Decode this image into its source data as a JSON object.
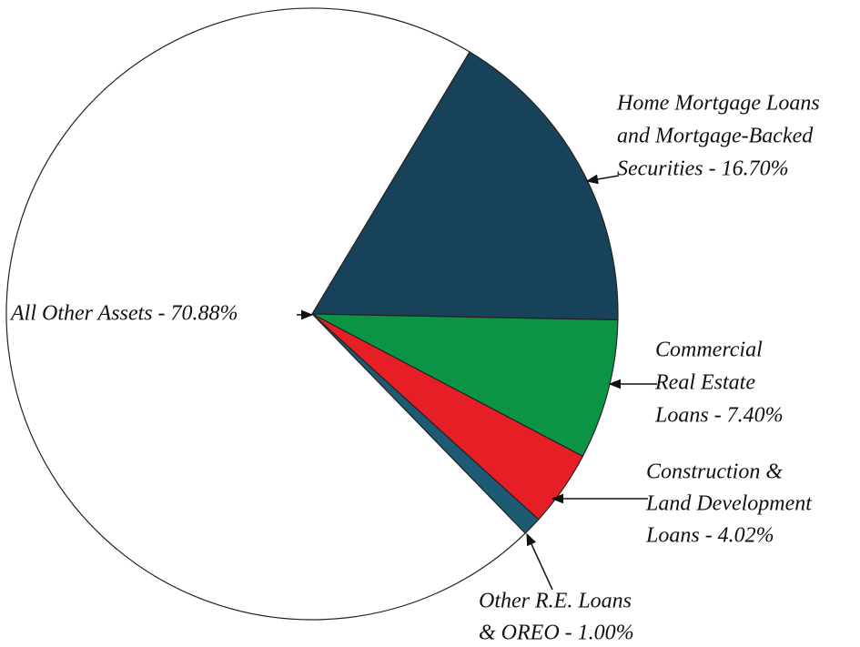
{
  "chart_data": {
    "type": "pie",
    "categories": [
      [
        "Home Mortgage Loans",
        "and Mortgage-Backed",
        "Securities  -  16.70%"
      ],
      [
        "Commercial",
        "Real Estate",
        "Loans  -  7.40%"
      ],
      [
        "Construction &",
        "Land Development",
        "Loans  -  4.02%"
      ],
      [
        "Other R.E. Loans",
        "& OREO  -  1.00%"
      ],
      [
        "All Other Assets  -  70.88%"
      ]
    ],
    "values": [
      16.7,
      7.4,
      4.02,
      1.0,
      70.88
    ],
    "colors": [
      "#17425a",
      "#0c9446",
      "#e61f27",
      "#1d5a74",
      "#ffffff"
    ]
  }
}
